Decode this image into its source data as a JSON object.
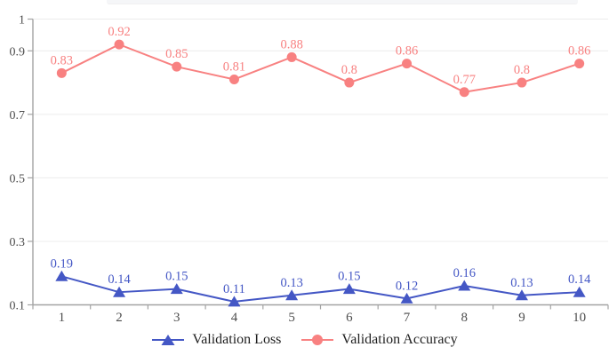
{
  "chart_data": {
    "type": "line",
    "title": "",
    "xlabel": "",
    "ylabel": "",
    "x_tick_labels": [
      "1",
      "2",
      "3",
      "4",
      "5",
      "6",
      "7",
      "8",
      "9",
      "10"
    ],
    "y_ticks": [
      1,
      0.9,
      0.7,
      0.5,
      0.3,
      0.1
    ],
    "y_tick_labels": [
      "1",
      "0.9",
      "0.7",
      "0.5",
      "0.3",
      "0.1"
    ],
    "ylim": [
      0.1,
      1
    ],
    "grid": true,
    "data_labels": true,
    "legend_position": "bottom",
    "axis_color": "#a3a3a3",
    "grid_color": "#ececec",
    "tick_label_color": "#4d4d4d",
    "series": [
      {
        "name": "Validation Loss",
        "marker": "triangle",
        "color": "#4457c5",
        "values": [
          0.19,
          0.14,
          0.15,
          0.11,
          0.13,
          0.15,
          0.12,
          0.16,
          0.13,
          0.14
        ]
      },
      {
        "name": "Validation Accuracy",
        "marker": "circle",
        "color": "#f88181",
        "values": [
          0.83,
          0.92,
          0.85,
          0.81,
          0.88,
          0.8,
          0.86,
          0.77,
          0.8,
          0.86
        ]
      }
    ]
  }
}
